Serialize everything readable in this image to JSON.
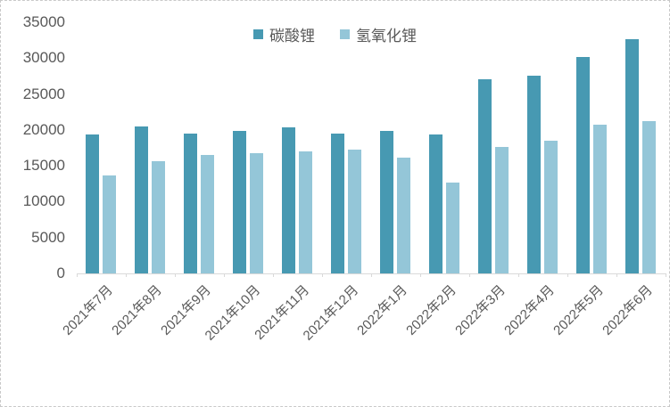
{
  "chart_data": {
    "type": "bar",
    "title": "",
    "xlabel": "",
    "ylabel": "",
    "categories": [
      "2021年7月",
      "2021年8月",
      "2021年9月",
      "2021年10月",
      "2021年11月",
      "2021年12月",
      "2022年1月",
      "2022年2月",
      "2022年3月",
      "2022年4月",
      "2022年5月",
      "2022年6月"
    ],
    "series": [
      {
        "name": "碳酸锂",
        "color": "#4799B2",
        "values": [
          19400,
          20500,
          19500,
          19800,
          20400,
          19500,
          19900,
          19400,
          27100,
          27600,
          30200,
          32700
        ]
      },
      {
        "name": "氢氧化锂",
        "color": "#94C6D8",
        "values": [
          13700,
          15700,
          16500,
          16700,
          17000,
          17200,
          16100,
          12700,
          17600,
          18500,
          20700,
          21200
        ]
      }
    ],
    "ylim": [
      0,
      35000
    ],
    "ytick_interval": 5000,
    "ytick_labels": [
      "0",
      "5000",
      "10000",
      "15000",
      "20000",
      "25000",
      "30000",
      "35000"
    ],
    "grid": false,
    "legend_position": "top-center"
  },
  "colors": {
    "axis_line": "#d9d9d9",
    "tick_text": "#595959",
    "series_dark": "#4799B2",
    "series_light": "#94C6D8",
    "background": "#ffffff"
  }
}
